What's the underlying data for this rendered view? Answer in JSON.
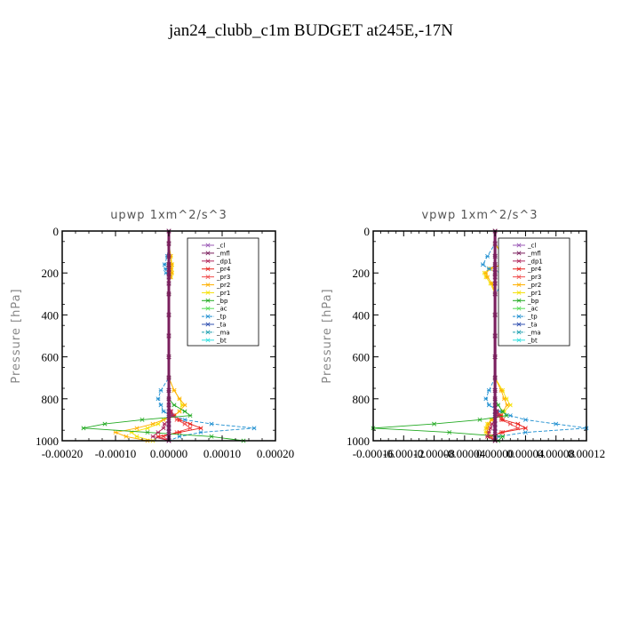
{
  "figure_title": "jan24_clubb_c1m  BUDGET at245E,-17N",
  "chart_data": [
    {
      "type": "line",
      "title": "upwp   1xm^2/s^3",
      "xlabel": "",
      "ylabel": "Pressure [hPa]",
      "xlim": [
        -0.0002,
        0.0002
      ],
      "ylim": [
        1000,
        0
      ],
      "x_ticks": [
        -0.0002,
        -0.0001,
        0,
        0.0001,
        0.0002
      ],
      "x_tick_labels": [
        "-0.00020",
        "-0.00010",
        "0.00000",
        "0.00010",
        "0.00020"
      ],
      "y_ticks": [
        0,
        200,
        400,
        600,
        800,
        1000
      ],
      "y_tick_labels": [
        "0",
        "200",
        "400",
        "600",
        "800",
        "1000"
      ],
      "legend_position": "top-right",
      "pressure_levels": [
        0,
        60,
        120,
        160,
        180,
        200,
        220,
        250,
        300,
        400,
        500,
        600,
        700,
        760,
        800,
        830,
        860,
        880,
        900,
        920,
        940,
        960,
        980,
        1000
      ],
      "series": [
        {
          "name": "_cl",
          "color": "#9b59b6",
          "values": [
            0,
            0,
            0,
            0,
            0,
            0,
            0,
            0,
            0,
            0,
            0,
            0,
            0,
            0,
            0,
            0,
            0,
            0,
            0,
            0,
            0,
            0,
            0,
            0
          ]
        },
        {
          "name": "_mfl",
          "color": "#7b1f5e",
          "values": [
            0,
            0,
            0,
            0,
            0,
            0,
            0,
            0,
            0,
            0,
            0,
            0,
            0,
            0,
            0,
            0,
            0,
            0,
            0,
            0,
            0,
            0,
            0,
            0
          ]
        },
        {
          "name": "_dp1",
          "color": "#b0245a",
          "values": [
            0,
            0,
            0,
            0,
            0,
            0,
            0,
            0,
            0,
            0,
            0,
            0,
            0,
            0,
            0,
            0,
            4e-06,
            6e-06,
            0,
            -8e-06,
            -1e-05,
            -2e-05,
            -3e-05,
            0
          ]
        },
        {
          "name": "_pr4",
          "color": "#e8201a",
          "values": [
            0,
            0,
            0,
            0,
            0,
            0,
            0,
            0,
            0,
            0,
            0,
            0,
            0,
            0,
            0,
            0,
            4e-06,
            1e-05,
            2e-05,
            4e-05,
            6e-05,
            2e-05,
            -2e-05,
            0
          ]
        },
        {
          "name": "_pr3",
          "color": "#f04a4a",
          "values": [
            0,
            0,
            0,
            0,
            0,
            0,
            0,
            0,
            0,
            0,
            0,
            0,
            0,
            0,
            0,
            0,
            3e-06,
            8e-06,
            1.5e-05,
            3e-05,
            4e-05,
            1.5e-05,
            -1e-05,
            0
          ]
        },
        {
          "name": "_pr2",
          "color": "#ffb000",
          "values": [
            0,
            0,
            3e-06,
            5e-06,
            4e-06,
            5e-06,
            3e-06,
            0,
            0,
            0,
            0,
            0,
            0,
            1e-05,
            2e-05,
            3e-05,
            2e-05,
            1e-05,
            -1e-05,
            -3e-05,
            -6e-05,
            -0.0001,
            -8e-05,
            -4e-05
          ]
        },
        {
          "name": "_pr1",
          "color": "#f5e000",
          "values": [
            0,
            0,
            4e-06,
            6e-06,
            5e-06,
            6e-06,
            4e-06,
            0,
            0,
            0,
            0,
            0,
            0,
            1e-05,
            2e-05,
            2.5e-05,
            2e-05,
            1e-05,
            -1e-05,
            -2e-05,
            -4e-05,
            -7e-05,
            -6e-05,
            -3e-05
          ]
        },
        {
          "name": "_bp",
          "color": "#22aa22",
          "values": [
            0,
            0,
            0,
            0,
            0,
            0,
            0,
            0,
            0,
            0,
            0,
            0,
            0,
            0,
            0,
            1e-05,
            3e-05,
            4e-05,
            -5e-05,
            -0.00012,
            -0.00016,
            -4e-05,
            8e-05,
            0.00014
          ]
        },
        {
          "name": "_ac",
          "color": "#55dd55",
          "values": [
            0,
            0,
            0,
            0,
            0,
            0,
            0,
            0,
            0,
            0,
            0,
            0,
            0,
            0,
            0,
            0,
            0,
            0,
            0,
            0,
            0,
            0,
            0,
            0
          ]
        },
        {
          "name": "_tp",
          "color": "#1f8fd0",
          "values": [
            0,
            0,
            -3e-06,
            -8e-06,
            -6e-06,
            -5e-06,
            0,
            0,
            0,
            0,
            0,
            0,
            0,
            -1.5e-05,
            -2e-05,
            -1.5e-05,
            -1e-05,
            5e-06,
            3e-05,
            8e-05,
            0.00016,
            6e-05,
            2e-05,
            0
          ]
        },
        {
          "name": "_ta",
          "color": "#3050b0",
          "values": [
            0,
            0,
            0,
            0,
            0,
            0,
            0,
            0,
            0,
            0,
            0,
            0,
            0,
            0,
            0,
            0,
            0,
            0,
            0,
            0,
            0,
            0,
            0,
            0
          ]
        },
        {
          "name": "_ma",
          "color": "#20a0b0",
          "values": [
            0,
            0,
            0,
            0,
            0,
            0,
            0,
            0,
            0,
            0,
            0,
            0,
            0,
            0,
            0,
            0,
            0,
            0,
            0,
            0,
            0,
            0,
            0,
            0
          ]
        },
        {
          "name": "_bt",
          "color": "#30e0e0",
          "values": [
            0,
            0,
            0,
            0,
            0,
            0,
            0,
            0,
            0,
            0,
            0,
            0,
            0,
            0,
            0,
            0,
            0,
            0,
            0,
            0,
            0,
            0,
            0,
            0
          ]
        }
      ]
    },
    {
      "type": "line",
      "title": "vpwp   1xm^2/s^3",
      "xlabel": "",
      "ylabel": "Pressure [hPa]",
      "xlim": [
        -0.00016,
        0.00012
      ],
      "ylim": [
        1000,
        0
      ],
      "x_ticks": [
        -0.00016,
        -0.00012,
        -8e-05,
        -4e-05,
        0,
        4e-05,
        8e-05,
        0.00012
      ],
      "x_tick_labels": [
        "-0.00016",
        "-0.00012",
        "-0.00008",
        "-0.00004",
        "0.00000",
        "0.00004",
        "0.00008",
        "0.00012"
      ],
      "y_ticks": [
        0,
        200,
        400,
        600,
        800,
        1000
      ],
      "y_tick_labels": [
        "0",
        "200",
        "400",
        "600",
        "800",
        "1000"
      ],
      "legend_position": "top-right",
      "pressure_levels": [
        0,
        60,
        120,
        160,
        180,
        200,
        220,
        250,
        300,
        400,
        500,
        600,
        700,
        760,
        800,
        830,
        860,
        880,
        900,
        920,
        940,
        960,
        980,
        1000
      ],
      "series": [
        {
          "name": "_cl",
          "color": "#9b59b6",
          "values": [
            0,
            0,
            0,
            0,
            0,
            0,
            0,
            0,
            0,
            0,
            0,
            0,
            0,
            0,
            0,
            0,
            0,
            0,
            0,
            0,
            0,
            0,
            0,
            0
          ]
        },
        {
          "name": "_mfl",
          "color": "#7b1f5e",
          "values": [
            0,
            0,
            0,
            0,
            0,
            0,
            0,
            0,
            0,
            0,
            0,
            0,
            0,
            0,
            0,
            0,
            0,
            0,
            0,
            0,
            0,
            0,
            0,
            0
          ]
        },
        {
          "name": "_dp1",
          "color": "#b0245a",
          "values": [
            0,
            0,
            0,
            0,
            0,
            0,
            0,
            0,
            0,
            0,
            0,
            0,
            0,
            0,
            0,
            0,
            2e-06,
            4e-06,
            0,
            -4e-06,
            -6e-06,
            -8e-06,
            -1e-05,
            0
          ]
        },
        {
          "name": "_pr4",
          "color": "#e8201a",
          "values": [
            0,
            0,
            0,
            0,
            0,
            0,
            0,
            0,
            0,
            0,
            0,
            0,
            0,
            0,
            0,
            0,
            3e-06,
            8e-06,
            1e-05,
            3e-05,
            4e-05,
            1e-05,
            -1e-05,
            0
          ]
        },
        {
          "name": "_pr3",
          "color": "#f04a4a",
          "values": [
            0,
            0,
            0,
            0,
            0,
            0,
            0,
            0,
            0,
            0,
            0,
            0,
            0,
            0,
            0,
            0,
            2e-06,
            6e-06,
            8e-06,
            2e-05,
            3e-05,
            8e-06,
            -5e-06,
            0
          ]
        },
        {
          "name": "_pr2",
          "color": "#ffb000",
          "values": [
            0,
            0,
            1e-05,
            8e-06,
            -6e-06,
            -1.2e-05,
            -1e-05,
            -4e-06,
            0,
            0,
            0,
            0,
            0,
            8e-06,
            1.2e-05,
            1.6e-05,
            1e-05,
            6e-06,
            -4e-06,
            -8e-06,
            -1e-05,
            -1e-05,
            -6e-06,
            0
          ]
        },
        {
          "name": "_pr1",
          "color": "#f5e000",
          "values": [
            0,
            0,
            1.2e-05,
            1e-05,
            -8e-06,
            -1.4e-05,
            -1.2e-05,
            -6e-06,
            0,
            0,
            0,
            0,
            0,
            1e-05,
            1.5e-05,
            2e-05,
            1.2e-05,
            8e-06,
            -5e-06,
            -1e-05,
            -1.2e-05,
            -1.2e-05,
            -8e-06,
            0
          ]
        },
        {
          "name": "_bp",
          "color": "#22aa22",
          "values": [
            0,
            0,
            0,
            0,
            0,
            0,
            0,
            0,
            0,
            0,
            0,
            0,
            0,
            0,
            0,
            4e-06,
            1e-05,
            1.5e-05,
            -2e-05,
            -8e-05,
            -0.00016,
            -6e-05,
            1e-05,
            4e-06
          ]
        },
        {
          "name": "_ac",
          "color": "#55dd55",
          "values": [
            0,
            0,
            0,
            0,
            0,
            0,
            0,
            0,
            0,
            0,
            0,
            0,
            0,
            0,
            0,
            0,
            0,
            0,
            0,
            0,
            0,
            0,
            0,
            0
          ]
        },
        {
          "name": "_tp",
          "color": "#1f8fd0",
          "values": [
            0,
            0,
            -1e-05,
            -1.6e-05,
            -8e-06,
            8e-06,
            1.2e-05,
            1e-05,
            0,
            0,
            0,
            0,
            0,
            -8e-06,
            -1.2e-05,
            -8e-06,
            6e-06,
            2e-05,
            4e-05,
            8e-05,
            0.00012,
            4e-05,
            5e-06,
            0
          ]
        },
        {
          "name": "_ta",
          "color": "#3050b0",
          "values": [
            0,
            0,
            0,
            0,
            0,
            0,
            0,
            0,
            0,
            0,
            0,
            0,
            0,
            0,
            0,
            0,
            0,
            0,
            0,
            0,
            0,
            0,
            0,
            0
          ]
        },
        {
          "name": "_ma",
          "color": "#20a0b0",
          "values": [
            0,
            0,
            0,
            0,
            0,
            0,
            0,
            0,
            0,
            0,
            0,
            0,
            0,
            0,
            0,
            0,
            0,
            0,
            0,
            0,
            0,
            0,
            0,
            0
          ]
        },
        {
          "name": "_bt",
          "color": "#30e0e0",
          "values": [
            0,
            0,
            0,
            0,
            0,
            0,
            0,
            0,
            0,
            0,
            0,
            0,
            0,
            0,
            0,
            0,
            0,
            0,
            0,
            0,
            0,
            0,
            0,
            0
          ]
        }
      ]
    }
  ]
}
